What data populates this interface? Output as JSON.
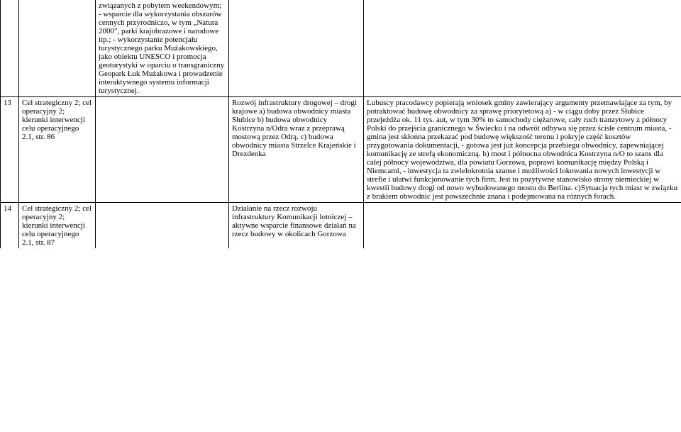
{
  "fontsize": 11,
  "text_color": "#000000",
  "border_color": "#000000",
  "background_color": "#ffffff",
  "columns": {
    "num_width": 26,
    "cel_width": 108,
    "desc_width": 188,
    "roz_width": 190,
    "arg_width": 448
  },
  "rows": [
    {
      "num": "",
      "cel": "",
      "desc": "związanych z pobytem weekendowym;\n- wsparcie dla wykorzystania obszarów cennych przyrodniczo, w tym „Natura 2000\", parki krajobrazowe i narodowe itp.;\n- wykorzystanie potencjału turystycznego parku Mużakowskiego, jako obiektu UNESCO i promocja geoturystyki w oparciu o transgraniczny Geopark Łuk Mużakowa i prowadzenie interaktywnego systemu informacji turystycznej.",
      "roz": "",
      "arg": ""
    },
    {
      "num": "13",
      "cel": "Cel strategiczny 2; cel operacyjny 2; kierunki interwencji celu operacyjnego 2.1, str. 86",
      "desc": "",
      "roz": "Rozwój infrastruktury drogowej – drogi krajowe\na) budowa obwodnicy miasta Słubice\nb) budowa obwodnicy Kostrzyna n/Odra wraz z przeprawą mostową przez Odrą.\nc) budowa obwodnicy miasta Strzelce Krajeńskie i Drezdenka",
      "arg": "Lubuscy pracodawcy popierają wniosek gminy zawierający argumenty przemawiające za tym, by potraktować budowę obwodnicy za sprawę priorytetową\na) - w ciągu doby przez Słubice przejeżdża ok. 11 tys. aut, w tym 30% to samochody ciężarowe, cały ruch tranzytowy z północy Polski do przejścia granicznego w Świecku i na odwrót odbywa się przez ścisłe centrum miasta,\n- gmina jest skłonna przekazać pod budowę większość terenu i pokryje część kosztów przygotowania dokumentacji,\n- gotowa jest już koncepcja przebiegu obwodnicy, zapewniającej komunikację ze strefą ekonomiczną.\nb) most i północna obwodnica Kostrzyna n/O to szans dla całej północy województwa, dla powiatu Gorzowa, poprawi komunikację między Polską i Niemcami,\n- inwestycja ta zwielokrotnia szanse i możliwości lokowania nowych inwestycji w strefie i ułatwi funkcjonowanie tych firm. Jest to pozytywne stanowisko strony niemieckiej w kwestii budowy drogi od nowo wybudowanego  mostu do Berlina.\nc)Sytuacja tych miast w związku z brakiem obwodnic jest powszechnie znana i podejmowana na różnych forach."
    },
    {
      "num": "14",
      "cel": "Cel strategiczny 2; cel operacyjny 2; kierunki interwencji celu operacyjnego 2.1, str. 87",
      "desc": "",
      "roz": "Działanie na rzecz rozwoju infrastruktury Komunikacji lotniczej – aktywne wsparcie finansowe działań na rzecz budowy w okolicach Gorzowa",
      "arg": ""
    }
  ]
}
